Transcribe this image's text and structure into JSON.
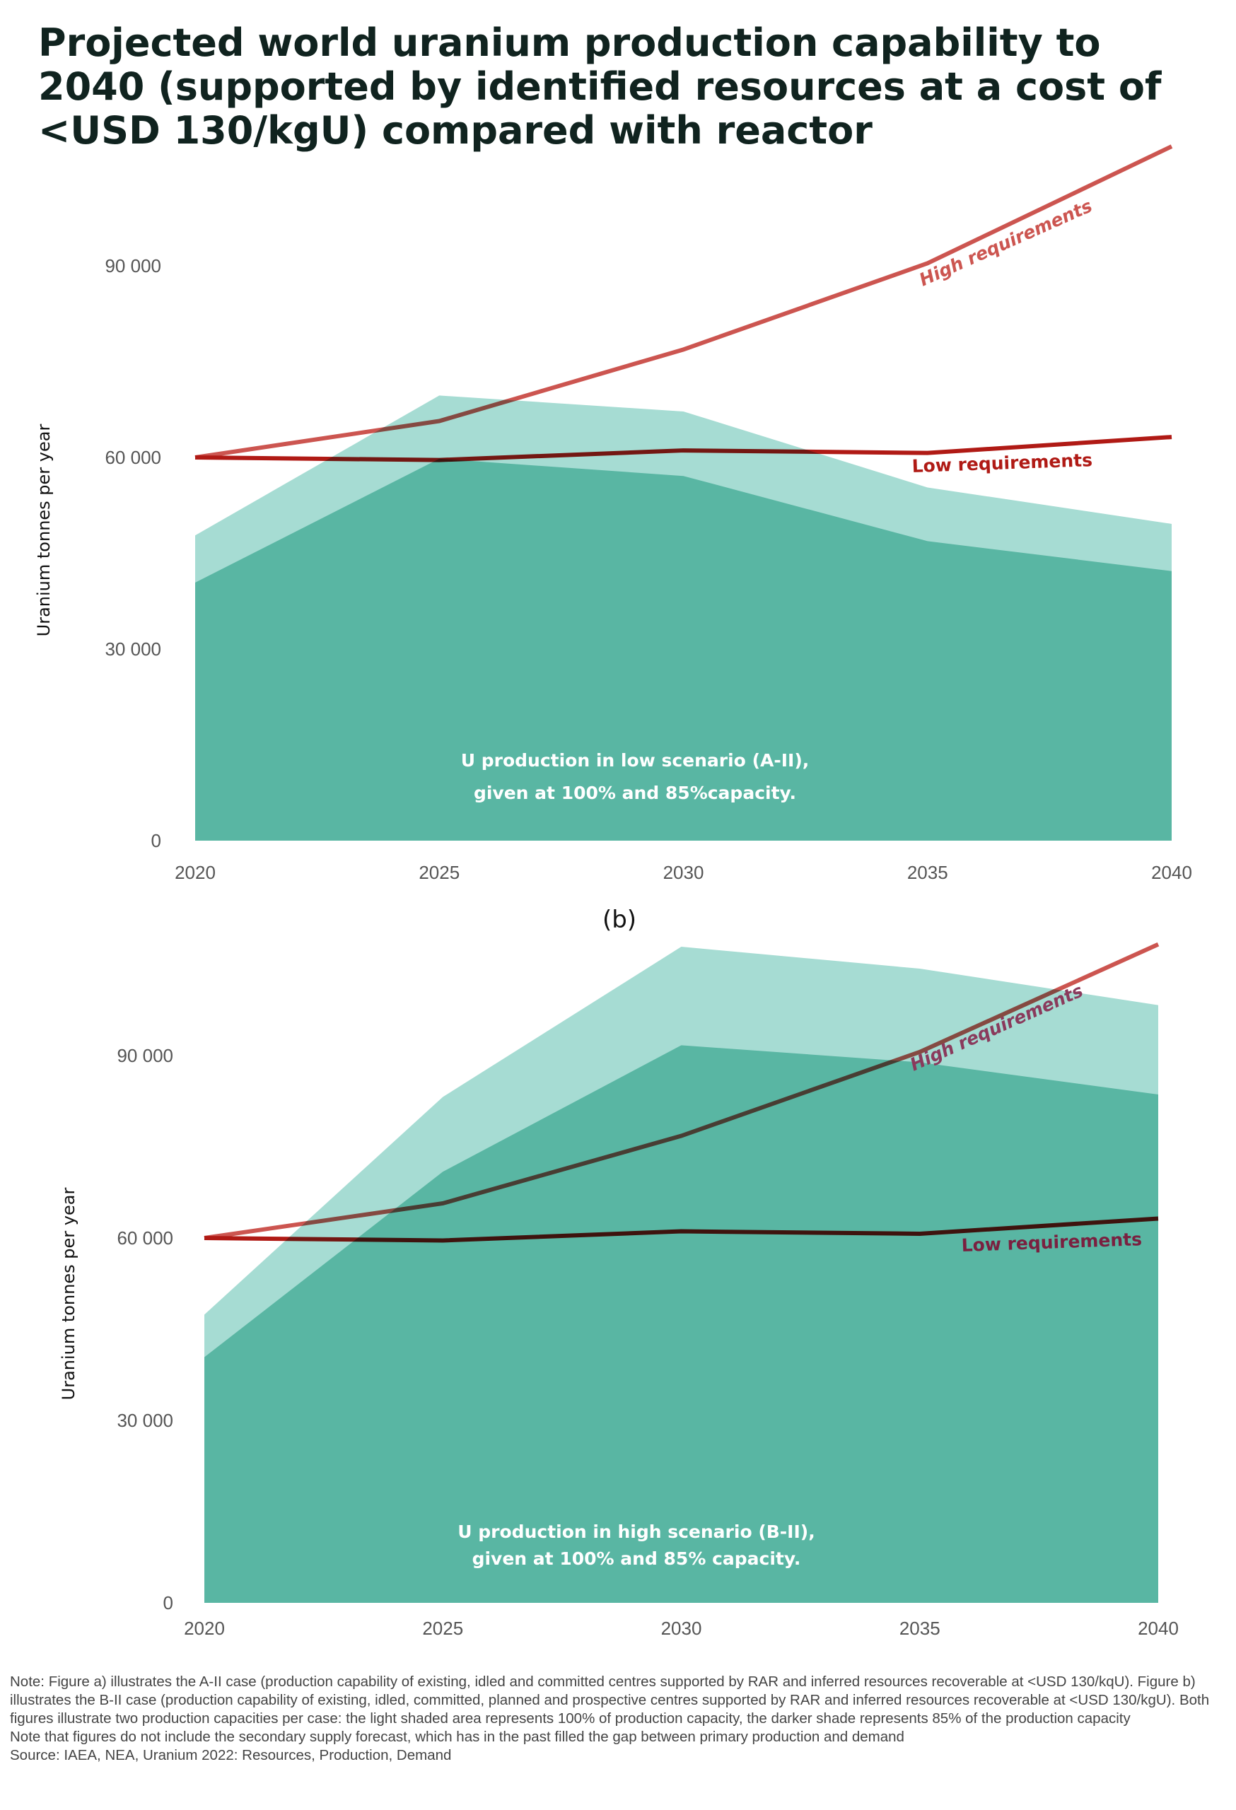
{
  "title": "Projected world uranium production capability to 2040 (supported by identified resources at a cost of <USD 130/kgU) compared with reactor",
  "colors": {
    "full_capacity": "#a6dcd3",
    "capacity_85": "#61c4b2",
    "high_requirements": "#cc5550",
    "low_requirements": "#b01a15"
  },
  "chart_data": [
    {
      "type": "area",
      "panel_label": "",
      "ylabel": "Uranium tonnes per year",
      "x": [
        "2020",
        "2025",
        "2030",
        "2035",
        "2040"
      ],
      "yticks": [
        "0",
        "30 000",
        "60 000",
        "90 000"
      ],
      "ylim": [
        0,
        110000
      ],
      "series": [
        {
          "key": "full",
          "values": [
            47800,
            69700,
            67200,
            55300,
            49600
          ]
        },
        {
          "key": "p85",
          "values": [
            40400,
            59800,
            57100,
            46900,
            42200
          ]
        },
        {
          "key": "high",
          "name": "High requirements",
          "values": [
            60000,
            65700,
            76900,
            90400,
            108700
          ]
        },
        {
          "key": "low",
          "name": "Low requirements",
          "values": [
            60000,
            59600,
            61100,
            60700,
            63200
          ]
        }
      ],
      "annotation": [
        "U production in low scenario (A-II),",
        "given at 100% and 85%capacity."
      ]
    },
    {
      "type": "area",
      "panel_label": "(b)",
      "ylabel": "Uranium tonnes per year",
      "x": [
        "2020",
        "2025",
        "2030",
        "2035",
        "2040"
      ],
      "yticks": [
        "0",
        "30 000",
        "60 000",
        "90 000"
      ],
      "ylim": [
        0,
        110000
      ],
      "series": [
        {
          "key": "full",
          "values": [
            47400,
            83200,
            107900,
            104300,
            98300
          ]
        },
        {
          "key": "p85",
          "values": [
            40400,
            70900,
            91700,
            88900,
            83600
          ]
        },
        {
          "key": "high",
          "name": "High requirements",
          "values": [
            60000,
            65700,
            76800,
            90600,
            108300
          ]
        },
        {
          "key": "low",
          "name": "Low requirements",
          "values": [
            60000,
            59600,
            61100,
            60700,
            63200
          ]
        }
      ],
      "annotation": [
        "U production in high scenario (B-II),",
        "given at 100% and 85% capacity."
      ]
    }
  ],
  "notes": [
    "Note: Figure a) illustrates the A-II case (production capability of existing, idled and committed centres supported by RAR and inferred resources recoverable at <USD 130/kqU). Figure b) illustrates the B-II case (production capability of existing, idled, committed, planned and prospective centres supported by RAR and inferred resources recoverable at <USD 130/kgU). Both figures illustrate two production capacities per case: the light shaded area represents 100% of production capacity, the darker shade represents 85% of the production capacity",
    "Note that figures do not include the secondary supply forecast, which has in the past filled the gap between primary production and demand",
    "Source: IAEA, NEA, Uranium 2022: Resources, Production, Demand"
  ]
}
